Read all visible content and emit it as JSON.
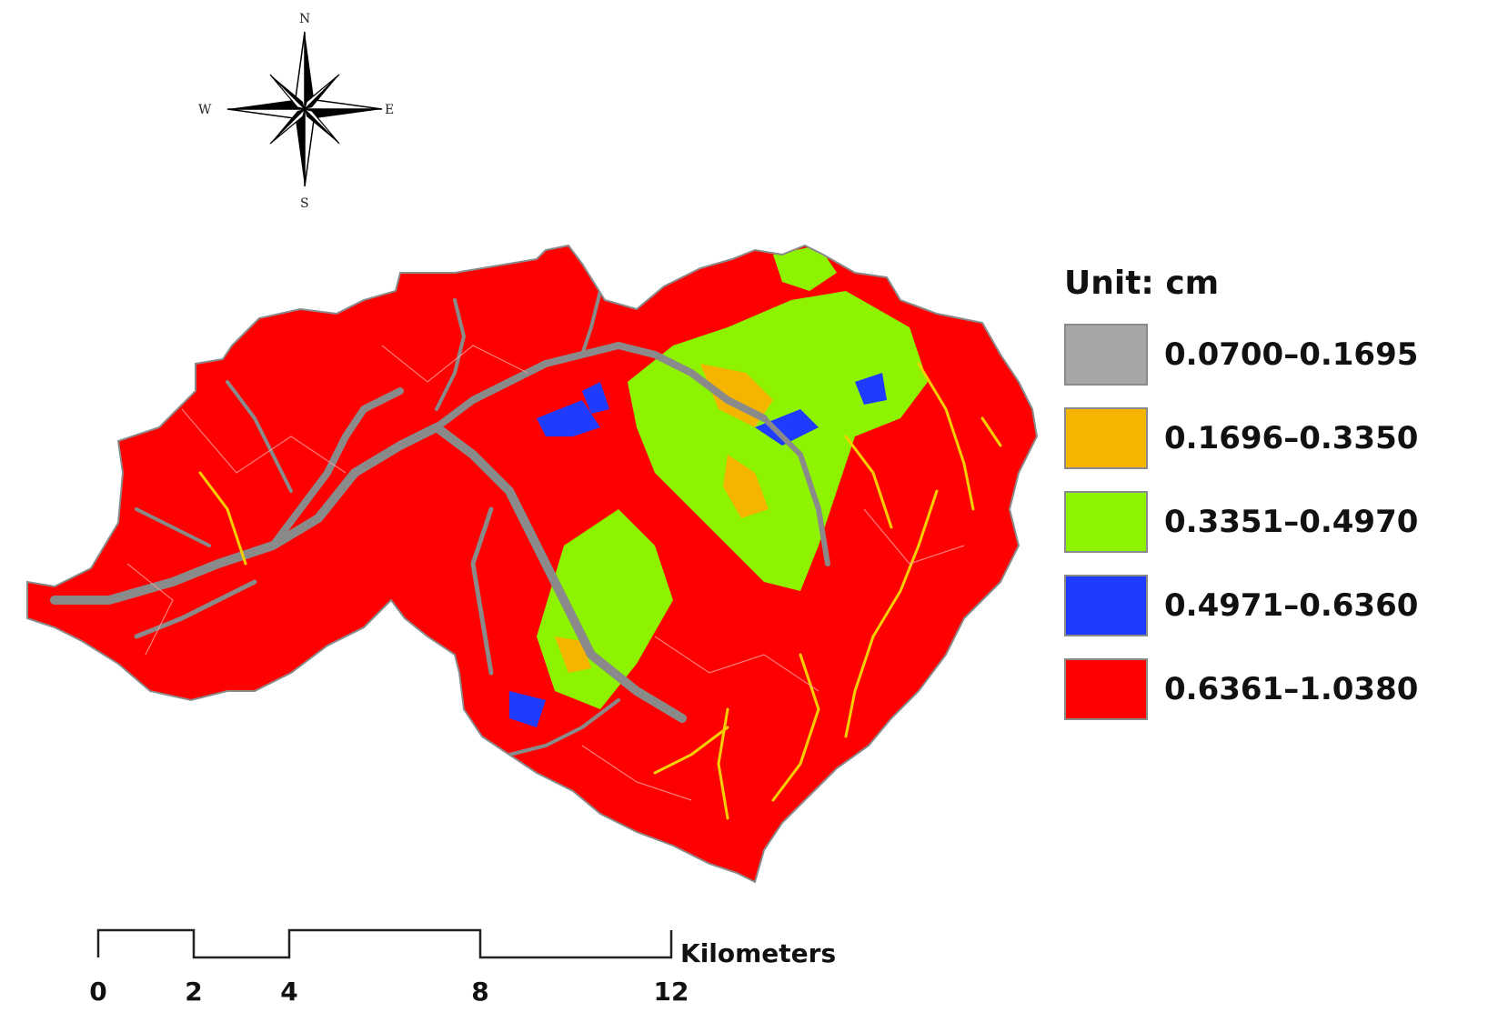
{
  "compass": {
    "icon": "north-arrow-compass-rose-icon",
    "north": "N",
    "south": "S",
    "east": "E",
    "west": "W"
  },
  "legend": {
    "title": "Unit: cm",
    "classes": [
      {
        "label": "0.0700–0.1695",
        "color": "#a6a6a6"
      },
      {
        "label": "0.1696–0.3350",
        "color": "#f5b400"
      },
      {
        "label": "0.3351–0.4970",
        "color": "#8ef300"
      },
      {
        "label": "0.4971–0.6360",
        "color": "#1f3bff"
      },
      {
        "label": "0.6361–1.0380",
        "color": "#ff0000"
      }
    ]
  },
  "scale_bar": {
    "unit": "Kilometers",
    "ticks": [
      "0",
      "2",
      "4",
      "8",
      "12"
    ],
    "tick_values_km": [
      0,
      2,
      4,
      8,
      12
    ]
  },
  "map": {
    "outline_color": "#808080",
    "dominant_class_color": "#ff0000"
  }
}
